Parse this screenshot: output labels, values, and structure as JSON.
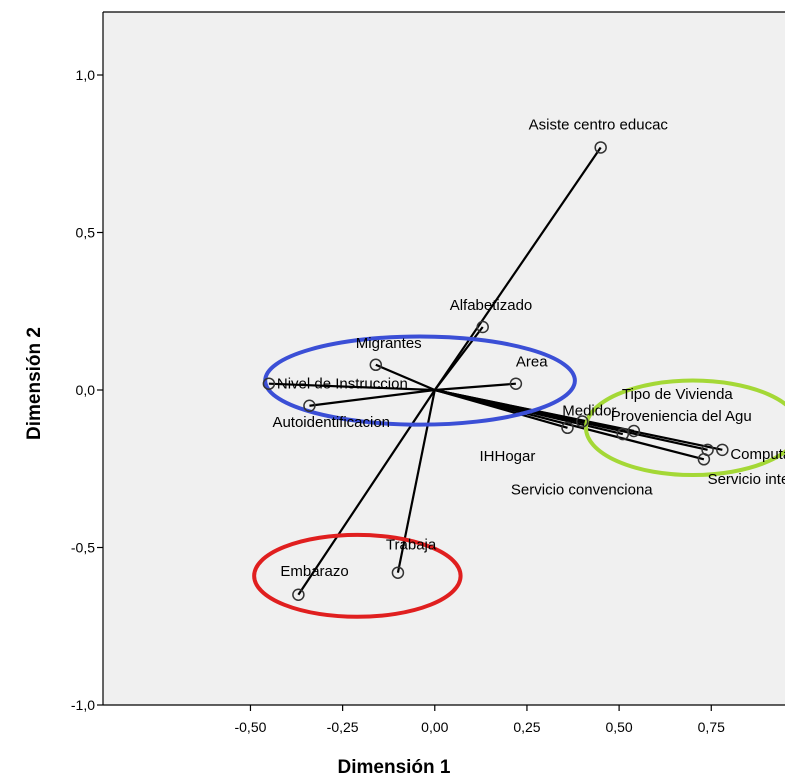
{
  "chart_data": {
    "type": "scatter",
    "xlabel": "Dimensión 1",
    "ylabel": "Dimensión 2",
    "xlim": [
      -0.9,
      0.95
    ],
    "ylim": [
      -1.0,
      1.2
    ],
    "x_ticks": [
      {
        "value": -0.5,
        "label": "-0,50"
      },
      {
        "value": -0.25,
        "label": "-0,25"
      },
      {
        "value": 0.0,
        "label": "0,00"
      },
      {
        "value": 0.25,
        "label": "0,25"
      },
      {
        "value": 0.5,
        "label": "0,50"
      },
      {
        "value": 0.75,
        "label": "0,75"
      }
    ],
    "y_ticks": [
      {
        "value": 1.0,
        "label": "1,0"
      },
      {
        "value": 0.5,
        "label": "0,5"
      },
      {
        "value": 0.0,
        "label": "0,0"
      },
      {
        "value": -0.5,
        "label": "-0,5"
      },
      {
        "value": -1.0,
        "label": "-1,0"
      }
    ],
    "grid": false,
    "background": "#f0f0f0",
    "points": [
      {
        "name": "Asiste centro educac",
        "x": 0.45,
        "y": 0.77
      },
      {
        "name": "Alfabetizado",
        "x": 0.13,
        "y": 0.2
      },
      {
        "name": "Migrantes",
        "x": -0.16,
        "y": 0.08
      },
      {
        "name": "Area",
        "x": 0.22,
        "y": 0.02
      },
      {
        "name": "Nivel de Instruccion",
        "x": -0.45,
        "y": 0.02
      },
      {
        "name": "Autoidentificacion",
        "x": -0.34,
        "y": -0.05
      },
      {
        "name": "Medidor",
        "x": 0.4,
        "y": -0.1
      },
      {
        "name": "IHHogar",
        "x": 0.36,
        "y": -0.12
      },
      {
        "name": "Tipo de Vivienda",
        "x": 0.54,
        "y": -0.13
      },
      {
        "name": "Proveniencia del Agu",
        "x": 0.51,
        "y": -0.14
      },
      {
        "name": "Computadora",
        "x": 0.78,
        "y": -0.19
      },
      {
        "name": "Servicio internet",
        "x": 0.74,
        "y": -0.19
      },
      {
        "name": "Servicio convenciona",
        "x": 0.73,
        "y": -0.22
      },
      {
        "name": "Trabaja",
        "x": -0.1,
        "y": -0.58
      },
      {
        "name": "Embarazo",
        "x": -0.37,
        "y": -0.65
      }
    ],
    "ellipses": [
      {
        "color": "#3b4fd6",
        "cx": -0.04,
        "cy": 0.03,
        "rx": 0.42,
        "ry": 0.14
      },
      {
        "color": "#a4d836",
        "cx": 0.7,
        "cy": -0.12,
        "rx": 0.29,
        "ry": 0.15
      },
      {
        "color": "#e01f1f",
        "cx": -0.21,
        "cy": -0.59,
        "rx": 0.28,
        "ry": 0.13
      }
    ]
  }
}
